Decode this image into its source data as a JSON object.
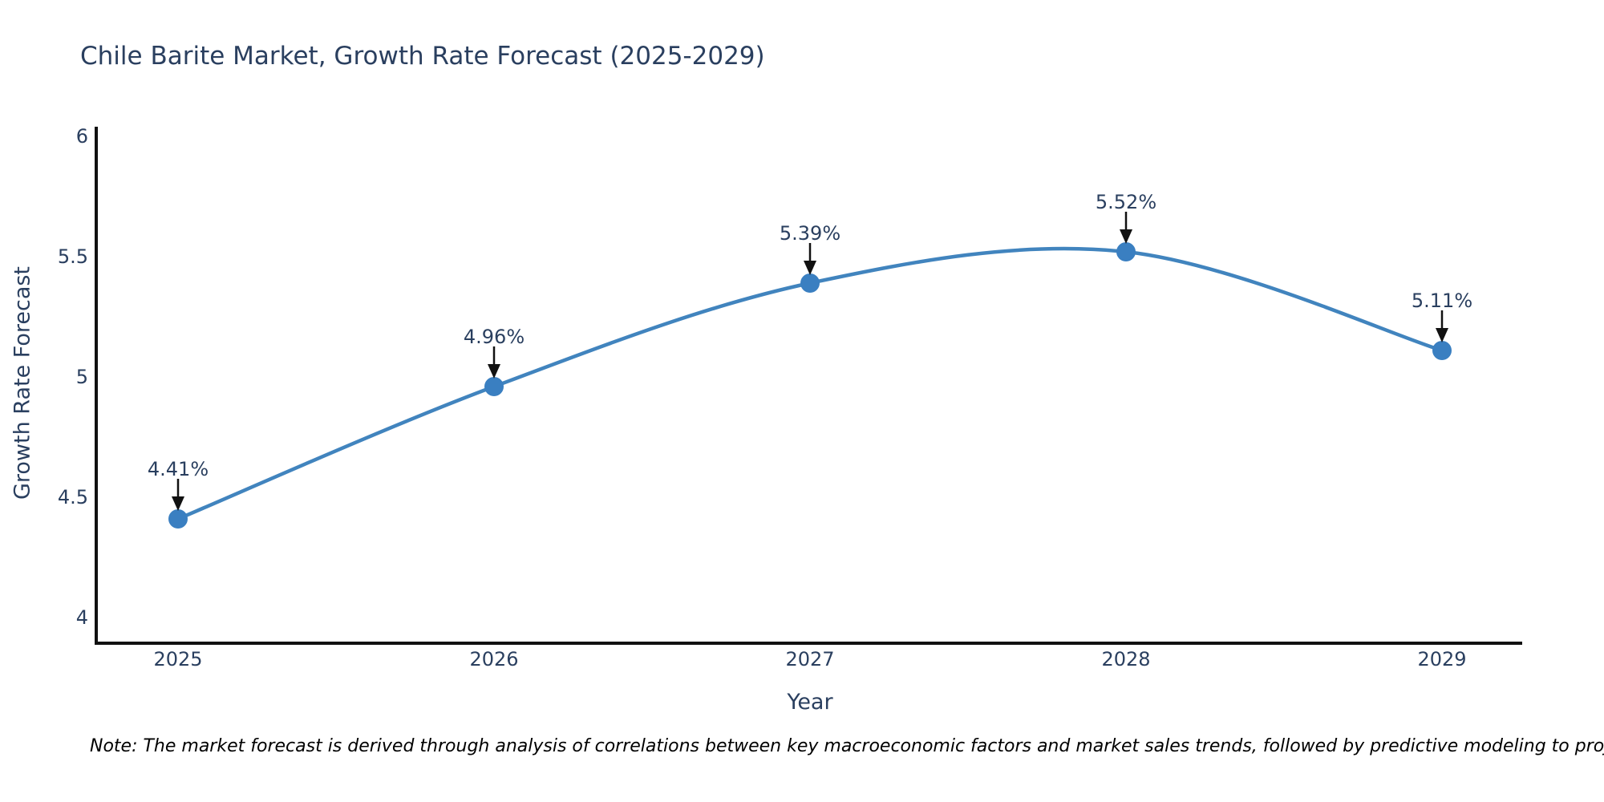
{
  "title": "Chile Barite Market, Growth Rate Forecast (2025-2029)",
  "note": "Note: The market forecast is derived through analysis of correlations between key macroeconomic factors and market sales trends, followed by predictive modeling to project future sales",
  "chart_data": {
    "type": "line",
    "title": "Chile Barite Market, Growth Rate Forecast (2025-2029)",
    "xlabel": "Year",
    "ylabel": "Growth Rate Forecast",
    "x": [
      2025,
      2026,
      2027,
      2028,
      2029
    ],
    "values": [
      4.41,
      4.96,
      5.39,
      5.52,
      5.11
    ],
    "point_labels": [
      "4.41%",
      "4.96%",
      "5.39%",
      "5.52%",
      "5.11%"
    ],
    "xtick_labels": [
      "2025",
      "2026",
      "2027",
      "2028",
      "2029"
    ],
    "yticks": [
      4,
      4.5,
      5,
      5.5,
      6
    ],
    "ytick_labels": [
      "4",
      "4.5",
      "5",
      "5.5",
      "6"
    ],
    "ylim": [
      4,
      6
    ],
    "line_shape": "spline",
    "grid": false,
    "legend": "none",
    "annotation_style": "value labels above points with black down-arrows",
    "colors": {
      "line": "#4184be",
      "marker": "#3a7fc1",
      "axis": "#111111",
      "arrow": "#111111",
      "text": "#2a3f5f",
      "note": "#000000",
      "background": "#ffffff"
    }
  }
}
